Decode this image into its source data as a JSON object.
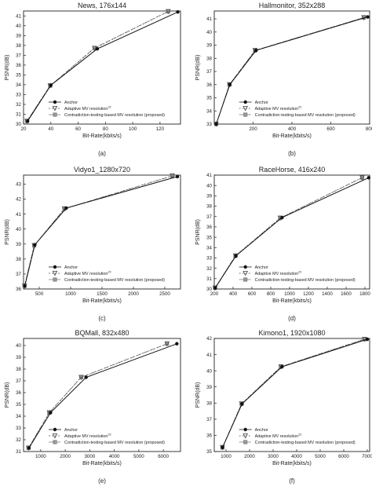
{
  "legend_labels": {
    "anchor": "Anchor",
    "adaptive": "Adaptive MV resolution",
    "proposed": "Contradiction-testing-based MV resolution (proposed)"
  },
  "colors": {
    "anchor": "#111111",
    "adaptive": "#555555",
    "proposed": "#777777",
    "axis": "#222222"
  },
  "chart_data": [
    {
      "type": "line",
      "title": "News, 176x144",
      "panel_label": "(a)",
      "xlabel": "Bit-Rate(kbits/s)",
      "ylabel": "PSNR(dB)",
      "legend_ref": "22",
      "legend_position": "bottom-right",
      "xlim": [
        20,
        135
      ],
      "ylim": [
        30,
        41.5
      ],
      "xticks": [
        20,
        40,
        60,
        80,
        100,
        120
      ],
      "yticks": [
        30,
        31,
        32,
        33,
        34,
        35,
        36,
        37,
        38,
        39,
        40,
        41
      ],
      "series": [
        {
          "name": "Anchor",
          "x": [
            23,
            40,
            74,
            133
          ],
          "y": [
            30.3,
            33.95,
            37.65,
            41.4
          ]
        },
        {
          "name": "Adaptive MV resolution",
          "x": [
            22.5,
            39.5,
            72,
            126
          ],
          "y": [
            30.3,
            33.9,
            37.7,
            41.45
          ]
        },
        {
          "name": "Contradiction-testing-based MV resolution (proposed)",
          "x": [
            22.5,
            39.5,
            72,
            126
          ],
          "y": [
            30.3,
            33.9,
            37.75,
            41.45
          ]
        }
      ]
    },
    {
      "type": "line",
      "title": "Hallmonitor, 352x288",
      "panel_label": "(b)",
      "xlabel": "Bit-Rate(kbits/s)",
      "ylabel": "PSNR(dB)",
      "legend_ref": "22",
      "legend_position": "bottom-right",
      "xlim": [
        0,
        800
      ],
      "ylim": [
        33,
        41.6
      ],
      "xticks": [
        200,
        400,
        600,
        800
      ],
      "yticks": [
        33,
        34,
        35,
        36,
        37,
        38,
        39,
        40,
        41
      ],
      "series": [
        {
          "name": "Anchor",
          "x": [
            10,
            80,
            215,
            790
          ],
          "y": [
            33.0,
            36.0,
            38.6,
            41.15
          ]
        },
        {
          "name": "Adaptive MV resolution",
          "x": [
            10,
            78,
            210,
            770
          ],
          "y": [
            33.0,
            36.0,
            38.6,
            41.1
          ]
        },
        {
          "name": "Contradiction-testing-based MV resolution (proposed)",
          "x": [
            10,
            78,
            210,
            770
          ],
          "y": [
            33.0,
            36.0,
            38.6,
            41.1
          ]
        }
      ]
    },
    {
      "type": "line",
      "title": "Vidyo1_1280x720",
      "panel_label": "(c)",
      "xlabel": "Bit-Rate(kbits/s)",
      "ylabel": "PSNR(dB)",
      "legend_ref": "22",
      "legend_position": "bottom-right",
      "xlim": [
        250,
        2750
      ],
      "ylim": [
        36,
        43.6
      ],
      "xticks": [
        500,
        1000,
        1500,
        2000,
        2500
      ],
      "yticks": [
        36,
        37,
        38,
        39,
        40,
        41,
        42,
        43
      ],
      "series": [
        {
          "name": "Anchor",
          "x": [
            270,
            430,
            930,
            2700
          ],
          "y": [
            36.2,
            38.95,
            41.4,
            43.5
          ]
        },
        {
          "name": "Adaptive MV resolution",
          "x": [
            265,
            420,
            900,
            2620
          ],
          "y": [
            36.2,
            38.9,
            41.35,
            43.55
          ]
        },
        {
          "name": "Contradiction-testing-based MV resolution (proposed)",
          "x": [
            265,
            420,
            900,
            2620
          ],
          "y": [
            36.2,
            38.9,
            41.35,
            43.55
          ]
        }
      ]
    },
    {
      "type": "line",
      "title": "RaceHorse, 416x240",
      "panel_label": "(d)",
      "xlabel": "Bit-Rate(kbits/s)",
      "ylabel": "PSNR(dB)",
      "legend_ref": "22",
      "legend_position": "bottom-right",
      "xlim": [
        200,
        1850
      ],
      "ylim": [
        30,
        41
      ],
      "xticks": [
        200,
        400,
        600,
        800,
        1000,
        1200,
        1400,
        1600,
        1800
      ],
      "yticks": [
        30,
        31,
        32,
        33,
        34,
        35,
        36,
        37,
        38,
        39,
        40,
        41
      ],
      "series": [
        {
          "name": "Anchor",
          "x": [
            210,
            430,
            920,
            1840
          ],
          "y": [
            30.1,
            33.2,
            36.9,
            40.75
          ]
        },
        {
          "name": "Adaptive MV resolution",
          "x": [
            208,
            425,
            900,
            1770
          ],
          "y": [
            30.1,
            33.2,
            36.85,
            40.75
          ]
        },
        {
          "name": "Contradiction-testing-based MV resolution (proposed)",
          "x": [
            208,
            425,
            900,
            1770
          ],
          "y": [
            30.1,
            33.2,
            36.85,
            40.75
          ]
        }
      ]
    },
    {
      "type": "line",
      "title": "BQMall, 832x480",
      "panel_label": "(e)",
      "xlabel": "Bit-Rate(kbits/s)",
      "ylabel": "PSNR(dB)",
      "legend_ref": "22",
      "legend_position": "bottom-right",
      "xlim": [
        300,
        6700
      ],
      "ylim": [
        31,
        40.6
      ],
      "xticks": [
        1000,
        2000,
        3000,
        4000,
        5000,
        6000
      ],
      "yticks": [
        31,
        32,
        33,
        34,
        35,
        36,
        37,
        38,
        39,
        40
      ],
      "series": [
        {
          "name": "Anchor",
          "x": [
            520,
            1400,
            2850,
            6550
          ],
          "y": [
            31.3,
            34.3,
            37.3,
            40.15
          ]
        },
        {
          "name": "Adaptive MV resolution",
          "x": [
            500,
            1350,
            2650,
            6150
          ],
          "y": [
            31.3,
            34.3,
            37.3,
            40.15
          ]
        },
        {
          "name": "Contradiction-testing-based MV resolution (proposed)",
          "x": [
            500,
            1350,
            2650,
            6150
          ],
          "y": [
            31.3,
            34.3,
            37.3,
            40.15
          ]
        }
      ]
    },
    {
      "type": "line",
      "title": "Kimono1, 1920x1080",
      "panel_label": "(f)",
      "xlabel": "Bit-Rate(kbits/s)",
      "ylabel": "PSNR(dB)",
      "legend_ref": "22",
      "legend_position": "bottom-right",
      "xlim": [
        500,
        7100
      ],
      "ylim": [
        35,
        42
      ],
      "xticks": [
        1000,
        2000,
        3000,
        4000,
        5000,
        6000,
        7000
      ],
      "yticks": [
        35,
        36,
        37,
        38,
        39,
        40,
        41,
        42
      ],
      "series": [
        {
          "name": "Anchor",
          "x": [
            850,
            1680,
            3380,
            7000
          ],
          "y": [
            35.25,
            37.95,
            40.25,
            41.95
          ]
        },
        {
          "name": "Adaptive MV resolution",
          "x": [
            845,
            1660,
            3330,
            6880
          ],
          "y": [
            35.25,
            37.95,
            40.25,
            41.95
          ]
        },
        {
          "name": "Contradiction-testing-based MV resolution (proposed)",
          "x": [
            845,
            1660,
            3330,
            6880
          ],
          "y": [
            35.25,
            37.95,
            40.25,
            41.95
          ]
        }
      ]
    }
  ]
}
